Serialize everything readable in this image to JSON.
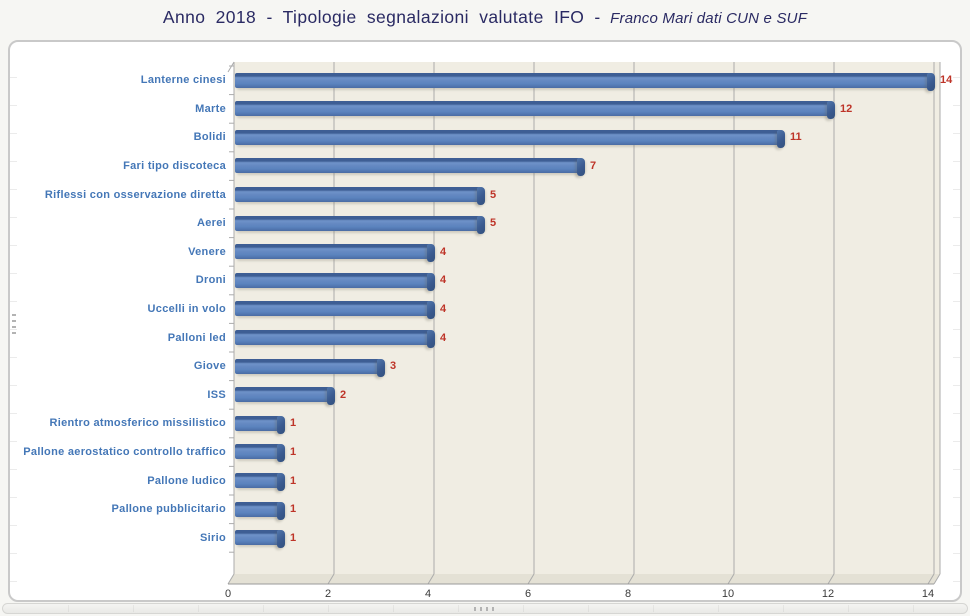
{
  "title": {
    "main": "Anno 2018 - Tipologie segnalazioni valutate IFO",
    "separator": "-",
    "attribution": "Franco Mari dati CUN e SUF"
  },
  "chart_data": {
    "type": "bar",
    "orientation": "horizontal",
    "title": "Anno 2018 - Tipologie segnalazioni valutate IFO",
    "subtitle": "Franco Mari dati CUN e SUF",
    "categories": [
      "Lanterne cinesi",
      "Marte",
      "Bolidi",
      "Fari tipo discoteca",
      "Riflessi con osservazione diretta",
      "Aerei",
      "Venere",
      "Droni",
      "Uccelli in volo",
      "Palloni led",
      "Giove",
      "ISS",
      "Rientro atmosferico missilistico",
      "Pallone aerostatico controllo traffico",
      "Pallone ludico",
      "Pallone pubblicitario",
      "Sirio"
    ],
    "values": [
      14,
      12,
      11,
      7,
      5,
      5,
      4,
      4,
      4,
      4,
      3,
      2,
      1,
      1,
      1,
      1,
      1
    ],
    "value_labels": [
      14,
      12,
      11,
      7,
      5,
      5,
      4,
      4,
      4,
      4,
      3,
      2,
      1,
      1,
      1,
      1,
      1
    ],
    "xticks": [
      0,
      2,
      4,
      6,
      8,
      10,
      12,
      14
    ],
    "xlim": [
      0,
      14
    ],
    "grid": true,
    "legend": false,
    "style": "3d-beveled-excel",
    "colors": {
      "bar_face": "#5b83be",
      "bar_edge": "#3e5e94",
      "category_label": "#4477b7",
      "value_label": "#be3428",
      "plot_background": "#f0ede3",
      "floor": "#e4e1d5",
      "gridline": "#ababab",
      "title": "#2a2a63",
      "axis_tick_label": "#3a3a3a"
    }
  }
}
